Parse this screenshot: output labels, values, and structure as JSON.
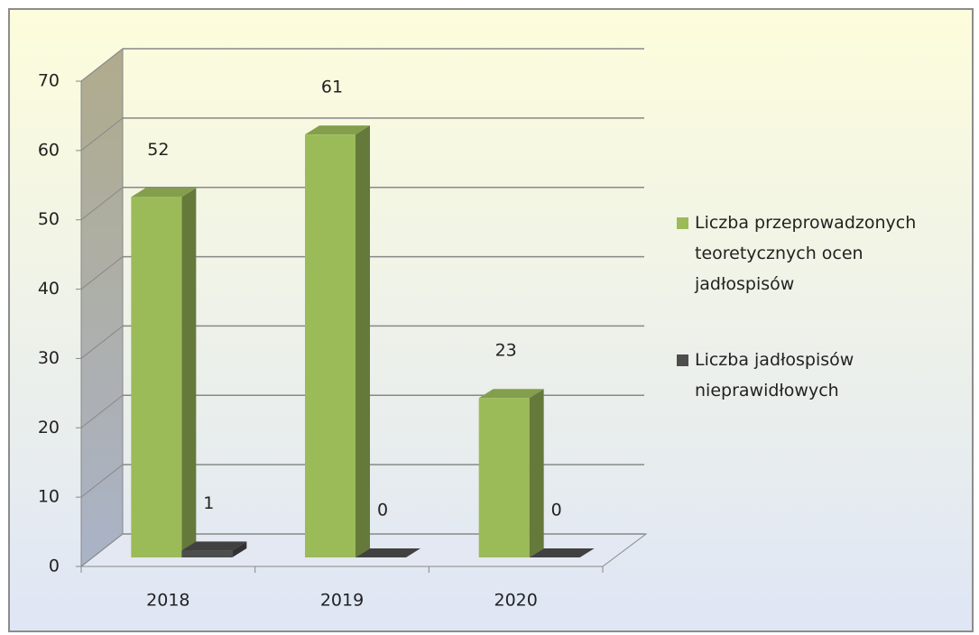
{
  "chart_data": {
    "type": "bar3d",
    "categories": [
      "2018",
      "2019",
      "2020"
    ],
    "series": [
      {
        "name": "Liczba przeprowadzonych teoretycznych ocen jadłospisów",
        "color": "#9bbb59",
        "values": [
          52,
          61,
          23
        ]
      },
      {
        "name": "Liczba jadłospisów nieprawidłowych",
        "color": "#4d4d4d",
        "values": [
          1,
          0,
          0
        ]
      }
    ],
    "ylim": [
      0,
      70
    ],
    "yticks": [
      0,
      10,
      20,
      30,
      40,
      50,
      60,
      70
    ],
    "grid": true,
    "legend": "right"
  }
}
